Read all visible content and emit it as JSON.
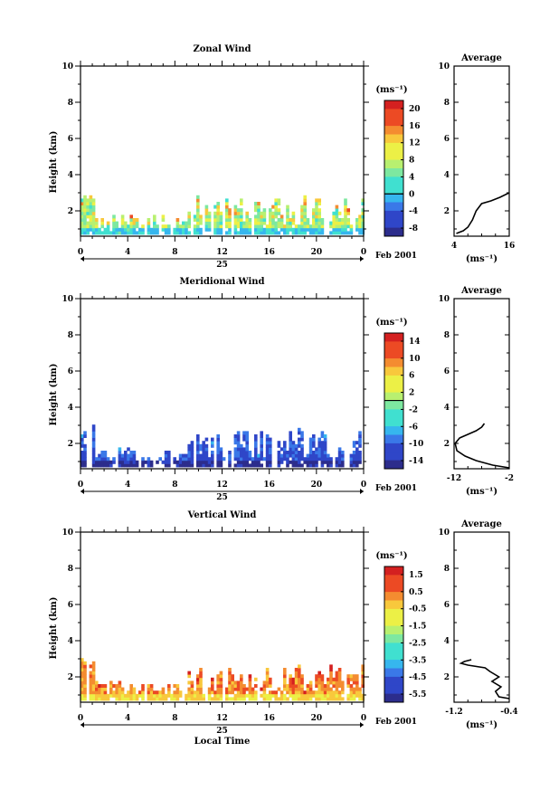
{
  "chart_data": [
    {
      "type": "heatmap",
      "title": "Zonal Wind",
      "ylabel": "Height (km)",
      "xlabel": "",
      "x_ticks": [
        "0",
        "4",
        "8",
        "12",
        "16",
        "20",
        "0"
      ],
      "y_ticks": [
        "2",
        "4",
        "6",
        "8",
        "10"
      ],
      "xlim": [
        0,
        24
      ],
      "ylim": [
        0.6,
        10
      ],
      "date_label": "25",
      "month_label": "Feb 2001",
      "colorbar": {
        "unit": "(ms⁻¹)",
        "labels": [
          "20",
          "16",
          "12",
          "8",
          "4",
          "0",
          "-4",
          "-8"
        ],
        "range": [
          -10,
          22
        ]
      },
      "value_range": [
        -2,
        16
      ],
      "profile": {
        "title": "Average",
        "xlabel": "(ms⁻¹)",
        "x_ticks": [
          "4",
          "16"
        ],
        "xlim": [
          4,
          16
        ],
        "y_ticks": [
          "2",
          "4",
          "6",
          "8",
          "10"
        ],
        "points": [
          [
            4.5,
            0.75
          ],
          [
            5,
            0.8
          ],
          [
            6,
            0.9
          ],
          [
            7,
            1.1
          ],
          [
            8,
            1.5
          ],
          [
            8.8,
            2.0
          ],
          [
            10,
            2.4
          ],
          [
            12,
            2.55
          ],
          [
            14,
            2.75
          ],
          [
            16,
            3.0
          ]
        ]
      }
    },
    {
      "type": "heatmap",
      "title": "Meridional Wind",
      "ylabel": "Height (km)",
      "xlabel": "",
      "x_ticks": [
        "0",
        "4",
        "8",
        "12",
        "16",
        "20",
        "0"
      ],
      "y_ticks": [
        "2",
        "4",
        "6",
        "8",
        "10"
      ],
      "xlim": [
        0,
        24
      ],
      "ylim": [
        0.6,
        10
      ],
      "date_label": "25",
      "month_label": "Feb 2001",
      "colorbar": {
        "unit": "(ms⁻¹)",
        "labels": [
          "14",
          "10",
          "6",
          "2",
          "-2",
          "-6",
          "-10",
          "-14"
        ],
        "range": [
          -16,
          16
        ]
      },
      "value_range": [
        -15,
        -8
      ],
      "profile": {
        "title": "Average",
        "xlabel": "(ms⁻¹)",
        "x_ticks": [
          "-12",
          "-2"
        ],
        "xlim": [
          -12,
          -2
        ],
        "y_ticks": [
          "2",
          "4",
          "6",
          "8",
          "10"
        ],
        "points": [
          [
            -2,
            0.65
          ],
          [
            -5,
            0.8
          ],
          [
            -8,
            1.05
          ],
          [
            -10,
            1.3
          ],
          [
            -11.5,
            1.6
          ],
          [
            -11.8,
            2.0
          ],
          [
            -11,
            2.3
          ],
          [
            -9.5,
            2.5
          ],
          [
            -8,
            2.7
          ],
          [
            -7,
            2.9
          ],
          [
            -6.5,
            3.1
          ]
        ]
      }
    },
    {
      "type": "heatmap",
      "title": "Vertical Wind",
      "ylabel": "Height (km)",
      "xlabel": "Local Time",
      "x_ticks": [
        "0",
        "4",
        "8",
        "12",
        "16",
        "20",
        "0"
      ],
      "y_ticks": [
        "2",
        "4",
        "6",
        "8",
        "10"
      ],
      "xlim": [
        0,
        24
      ],
      "ylim": [
        0.6,
        10
      ],
      "date_label": "25",
      "month_label": "Feb 2001",
      "colorbar": {
        "unit": "(ms⁻¹)",
        "labels": [
          "1.5",
          "0.5",
          "-0.5",
          "-1.5",
          "-2.5",
          "-3.5",
          "-4.5",
          "-5.5"
        ],
        "range": [
          -6,
          2
        ]
      },
      "value_range": [
        -1.0,
        1.5
      ],
      "profile": {
        "title": "Average",
        "xlabel": "(ms⁻¹)",
        "x_ticks": [
          "-1.2",
          "-0.4"
        ],
        "xlim": [
          -1.2,
          -0.4
        ],
        "y_ticks": [
          "2",
          "4",
          "6",
          "8",
          "10"
        ],
        "points": [
          [
            -0.4,
            0.8
          ],
          [
            -0.55,
            0.9
          ],
          [
            -0.6,
            1.2
          ],
          [
            -0.52,
            1.45
          ],
          [
            -0.65,
            1.75
          ],
          [
            -0.55,
            2.0
          ],
          [
            -0.68,
            2.3
          ],
          [
            -0.75,
            2.5
          ],
          [
            -1.0,
            2.65
          ],
          [
            -1.1,
            2.75
          ],
          [
            -1.05,
            2.85
          ],
          [
            -0.95,
            2.95
          ]
        ]
      }
    }
  ]
}
